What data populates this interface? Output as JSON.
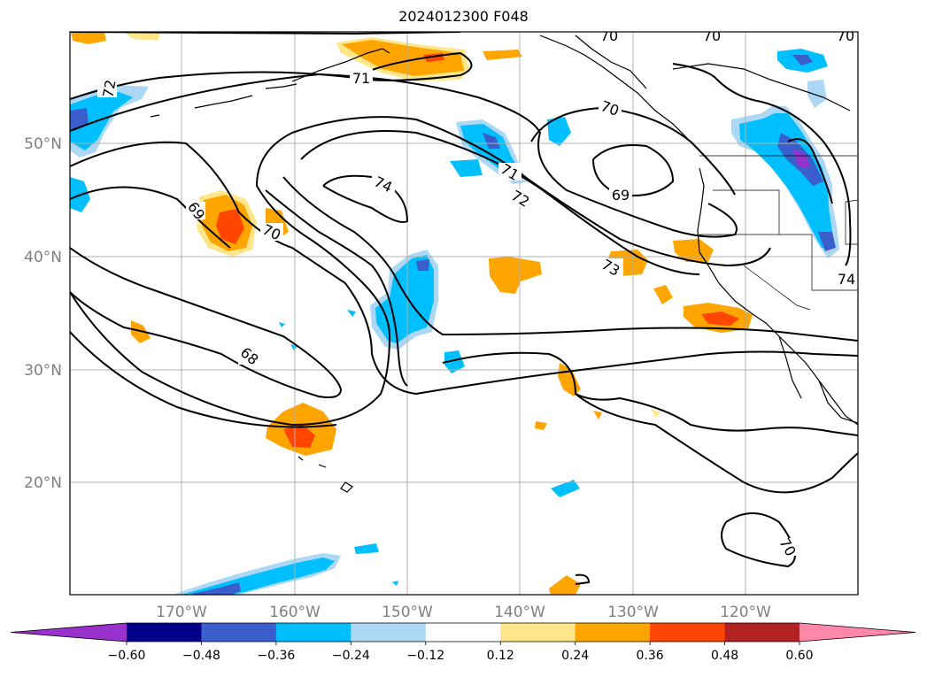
{
  "title": "2024012300 F048",
  "map": {
    "lat_labels": [
      "50°N",
      "40°N",
      "30°N",
      "20°N"
    ],
    "lon_labels": [
      "170°W",
      "160°W",
      "150°W",
      "140°W",
      "130°W",
      "120°W"
    ],
    "contour_labels": [
      "72",
      "71",
      "70",
      "74",
      "69",
      "71",
      "72",
      "69",
      "70",
      "73",
      "74",
      "68",
      "70",
      "70",
      "70",
      "70"
    ]
  },
  "colorbar": {
    "tick_labels": [
      "−0.60",
      "−0.48",
      "−0.36",
      "−0.24",
      "−0.12",
      "0.12",
      "0.24",
      "0.36",
      "0.48",
      "0.60"
    ],
    "colors": [
      "#9932cc",
      "#00008b",
      "#3a5fcd",
      "#00bfff",
      "#add8f5",
      "#ffffff",
      "#ffe68a",
      "#ffa500",
      "#ff4500",
      "#b22222",
      "#ff88aa"
    ]
  }
}
